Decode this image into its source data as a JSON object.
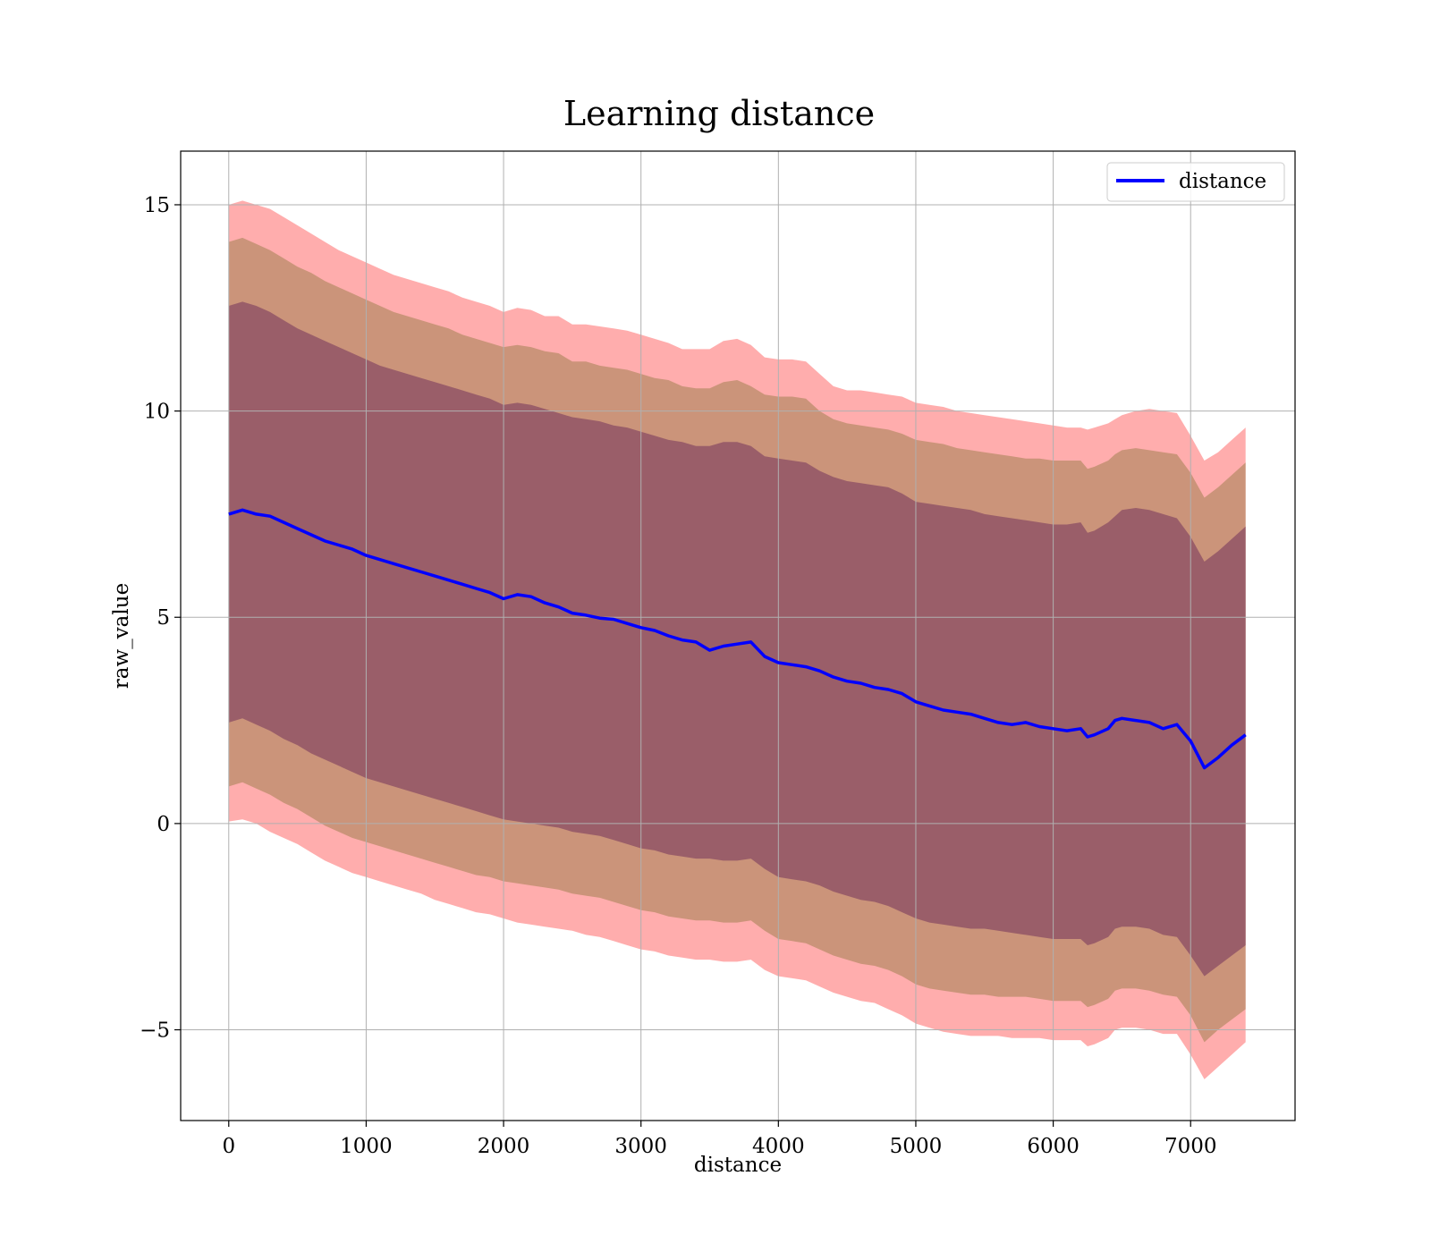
{
  "chart_data": {
    "type": "area",
    "title": "Learning distance",
    "xlabel": "distance",
    "ylabel": "raw_value",
    "xlim": [
      -350,
      7760
    ],
    "ylim": [
      -7.2,
      16.3
    ],
    "xticks": [
      0,
      1000,
      2000,
      3000,
      4000,
      5000,
      6000,
      7000
    ],
    "yticks": [
      -5,
      0,
      5,
      10,
      15
    ],
    "ytick_labels": [
      "−5",
      "0",
      "5",
      "10",
      "15"
    ],
    "grid": true,
    "legend": {
      "placement": "top-right",
      "entries": [
        "distance"
      ]
    },
    "x": [
      0,
      100,
      200,
      300,
      400,
      500,
      600,
      700,
      800,
      900,
      1000,
      1100,
      1200,
      1300,
      1400,
      1500,
      1600,
      1700,
      1800,
      1900,
      2000,
      2100,
      2200,
      2300,
      2400,
      2500,
      2600,
      2700,
      2800,
      2900,
      3000,
      3100,
      3200,
      3300,
      3400,
      3500,
      3600,
      3700,
      3800,
      3900,
      4000,
      4100,
      4200,
      4300,
      4400,
      4500,
      4600,
      4700,
      4800,
      4900,
      5000,
      5100,
      5200,
      5300,
      5400,
      5500,
      5600,
      5700,
      5800,
      5900,
      6000,
      6100,
      6200,
      6250,
      6300,
      6400,
      6450,
      6500,
      6600,
      6700,
      6800,
      6900,
      7000,
      7100,
      7200,
      7300,
      7400
    ],
    "series": [
      {
        "name": "distance",
        "color": "#0000ff",
        "values": [
          7.5,
          7.6,
          7.5,
          7.45,
          7.3,
          7.15,
          7.0,
          6.85,
          6.75,
          6.65,
          6.5,
          6.4,
          6.3,
          6.2,
          6.1,
          6.0,
          5.9,
          5.8,
          5.7,
          5.6,
          5.45,
          5.55,
          5.5,
          5.35,
          5.25,
          5.1,
          5.05,
          4.98,
          4.95,
          4.85,
          4.75,
          4.68,
          4.55,
          4.45,
          4.4,
          4.2,
          4.3,
          4.35,
          4.4,
          4.05,
          3.9,
          3.85,
          3.8,
          3.7,
          3.55,
          3.45,
          3.4,
          3.3,
          3.25,
          3.15,
          2.95,
          2.85,
          2.75,
          2.7,
          2.65,
          2.55,
          2.45,
          2.4,
          2.45,
          2.35,
          2.3,
          2.25,
          2.3,
          2.1,
          2.15,
          2.3,
          2.5,
          2.55,
          2.5,
          2.45,
          2.3,
          2.4,
          2.0,
          1.35,
          1.6,
          1.9,
          2.15
        ]
      }
    ],
    "bands": [
      {
        "color": "#ff0000",
        "opacity": 0.32,
        "upper": [
          15.0,
          15.1,
          15.0,
          14.9,
          14.7,
          14.5,
          14.3,
          14.1,
          13.9,
          13.75,
          13.6,
          13.45,
          13.3,
          13.2,
          13.1,
          13.0,
          12.9,
          12.75,
          12.65,
          12.55,
          12.4,
          12.5,
          12.45,
          12.3,
          12.3,
          12.1,
          12.1,
          12.05,
          12.0,
          11.95,
          11.85,
          11.75,
          11.65,
          11.5,
          11.5,
          11.5,
          11.7,
          11.75,
          11.6,
          11.3,
          11.25,
          11.25,
          11.2,
          10.9,
          10.6,
          10.5,
          10.5,
          10.45,
          10.4,
          10.35,
          10.2,
          10.15,
          10.1,
          10.0,
          9.95,
          9.9,
          9.85,
          9.8,
          9.75,
          9.7,
          9.65,
          9.6,
          9.6,
          9.55,
          9.6,
          9.7,
          9.8,
          9.9,
          10.0,
          10.05,
          10.0,
          9.95,
          9.4,
          8.8,
          9.0,
          9.3,
          9.6
        ],
        "lower": [
          0.05,
          0.1,
          0.0,
          -0.2,
          -0.35,
          -0.5,
          -0.7,
          -0.9,
          -1.05,
          -1.2,
          -1.3,
          -1.4,
          -1.5,
          -1.6,
          -1.7,
          -1.85,
          -1.95,
          -2.05,
          -2.15,
          -2.2,
          -2.3,
          -2.4,
          -2.45,
          -2.5,
          -2.55,
          -2.6,
          -2.7,
          -2.75,
          -2.85,
          -2.95,
          -3.05,
          -3.1,
          -3.2,
          -3.25,
          -3.3,
          -3.3,
          -3.35,
          -3.35,
          -3.3,
          -3.55,
          -3.7,
          -3.75,
          -3.8,
          -3.95,
          -4.1,
          -4.2,
          -4.3,
          -4.35,
          -4.5,
          -4.65,
          -4.85,
          -4.95,
          -5.05,
          -5.1,
          -5.15,
          -5.15,
          -5.15,
          -5.2,
          -5.2,
          -5.2,
          -5.25,
          -5.25,
          -5.25,
          -5.4,
          -5.35,
          -5.2,
          -5.0,
          -4.95,
          -4.95,
          -5.0,
          -5.1,
          -5.1,
          -5.6,
          -6.2,
          -5.9,
          -5.6,
          -5.3
        ]
      },
      {
        "color": "#a08050",
        "opacity": 0.55,
        "upper": [
          14.1,
          14.2,
          14.05,
          13.9,
          13.7,
          13.5,
          13.35,
          13.15,
          13.0,
          12.85,
          12.7,
          12.55,
          12.4,
          12.3,
          12.2,
          12.1,
          12.0,
          11.85,
          11.75,
          11.65,
          11.55,
          11.6,
          11.55,
          11.45,
          11.4,
          11.2,
          11.2,
          11.1,
          11.05,
          11.0,
          10.9,
          10.8,
          10.75,
          10.6,
          10.55,
          10.55,
          10.7,
          10.75,
          10.6,
          10.4,
          10.35,
          10.35,
          10.3,
          10.0,
          9.8,
          9.7,
          9.65,
          9.6,
          9.55,
          9.45,
          9.3,
          9.25,
          9.2,
          9.1,
          9.05,
          9.0,
          8.95,
          8.9,
          8.85,
          8.85,
          8.8,
          8.8,
          8.8,
          8.6,
          8.65,
          8.8,
          8.95,
          9.05,
          9.1,
          9.05,
          9.0,
          8.95,
          8.5,
          7.9,
          8.15,
          8.45,
          8.75
        ],
        "lower": [
          0.9,
          1.0,
          0.85,
          0.7,
          0.5,
          0.35,
          0.15,
          -0.05,
          -0.2,
          -0.35,
          -0.45,
          -0.55,
          -0.65,
          -0.75,
          -0.85,
          -0.95,
          -1.05,
          -1.15,
          -1.25,
          -1.3,
          -1.4,
          -1.45,
          -1.5,
          -1.55,
          -1.6,
          -1.7,
          -1.75,
          -1.8,
          -1.9,
          -2.0,
          -2.1,
          -2.15,
          -2.25,
          -2.3,
          -2.35,
          -2.35,
          -2.4,
          -2.4,
          -2.35,
          -2.6,
          -2.8,
          -2.85,
          -2.9,
          -3.05,
          -3.2,
          -3.3,
          -3.4,
          -3.45,
          -3.55,
          -3.7,
          -3.9,
          -4.0,
          -4.05,
          -4.1,
          -4.15,
          -4.15,
          -4.2,
          -4.2,
          -4.2,
          -4.25,
          -4.3,
          -4.3,
          -4.3,
          -4.45,
          -4.4,
          -4.25,
          -4.05,
          -4.0,
          -4.0,
          -4.05,
          -4.15,
          -4.2,
          -4.65,
          -5.3,
          -5.0,
          -4.75,
          -4.5
        ]
      },
      {
        "color": "#7a3b5e",
        "opacity": 0.6,
        "upper": [
          12.55,
          12.65,
          12.55,
          12.4,
          12.2,
          12.0,
          11.85,
          11.7,
          11.55,
          11.4,
          11.25,
          11.1,
          11.0,
          10.9,
          10.8,
          10.7,
          10.6,
          10.5,
          10.4,
          10.3,
          10.15,
          10.2,
          10.15,
          10.05,
          9.95,
          9.85,
          9.8,
          9.75,
          9.65,
          9.6,
          9.5,
          9.4,
          9.3,
          9.25,
          9.15,
          9.15,
          9.25,
          9.25,
          9.15,
          8.9,
          8.85,
          8.8,
          8.75,
          8.55,
          8.4,
          8.3,
          8.25,
          8.2,
          8.15,
          8.0,
          7.8,
          7.75,
          7.7,
          7.65,
          7.6,
          7.5,
          7.45,
          7.4,
          7.35,
          7.3,
          7.25,
          7.25,
          7.3,
          7.05,
          7.1,
          7.3,
          7.45,
          7.6,
          7.65,
          7.6,
          7.5,
          7.4,
          6.95,
          6.35,
          6.6,
          6.9,
          7.2
        ],
        "lower": [
          2.45,
          2.55,
          2.4,
          2.25,
          2.05,
          1.9,
          1.7,
          1.55,
          1.4,
          1.25,
          1.1,
          1.0,
          0.9,
          0.8,
          0.7,
          0.6,
          0.5,
          0.4,
          0.3,
          0.2,
          0.1,
          0.05,
          0.0,
          -0.05,
          -0.1,
          -0.2,
          -0.25,
          -0.3,
          -0.4,
          -0.5,
          -0.6,
          -0.65,
          -0.75,
          -0.8,
          -0.85,
          -0.85,
          -0.9,
          -0.9,
          -0.85,
          -1.1,
          -1.3,
          -1.35,
          -1.4,
          -1.5,
          -1.65,
          -1.75,
          -1.85,
          -1.9,
          -2.0,
          -2.15,
          -2.3,
          -2.4,
          -2.45,
          -2.5,
          -2.55,
          -2.55,
          -2.6,
          -2.65,
          -2.7,
          -2.75,
          -2.8,
          -2.8,
          -2.8,
          -2.95,
          -2.9,
          -2.75,
          -2.55,
          -2.5,
          -2.5,
          -2.55,
          -2.7,
          -2.75,
          -3.2,
          -3.7,
          -3.45,
          -3.2,
          -2.95
        ]
      }
    ]
  }
}
